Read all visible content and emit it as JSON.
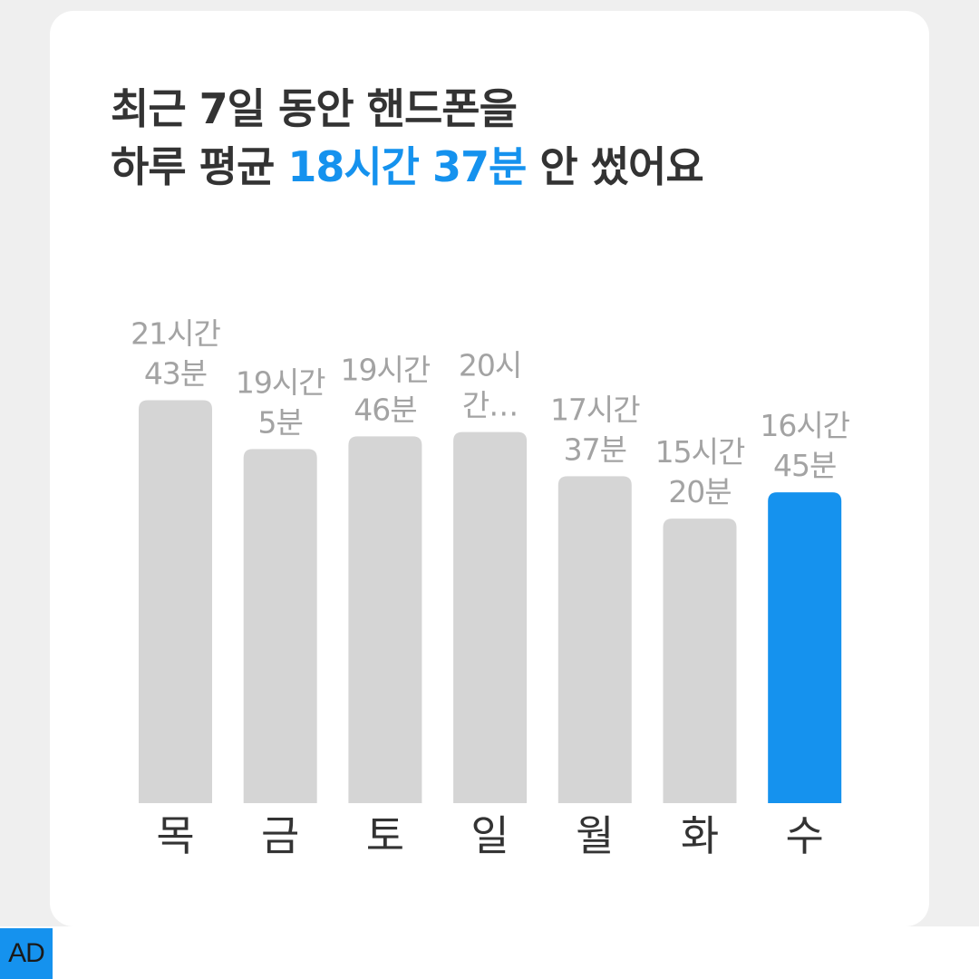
{
  "headline": {
    "line1": "최근 7일 동안 핸드폰을",
    "line2_prefix": "하루 평균 ",
    "line2_highlight": "18시간 37분",
    "line2_suffix": " 안 썼어요"
  },
  "chart_data": {
    "type": "bar",
    "categories": [
      "목",
      "금",
      "토",
      "일",
      "월",
      "화",
      "수"
    ],
    "values": [
      21.717,
      19.083,
      19.767,
      20.0,
      17.617,
      15.333,
      16.75
    ],
    "value_labels": [
      [
        "21시간",
        "43분"
      ],
      [
        "19시간",
        "5분"
      ],
      [
        "19시간",
        "46분"
      ],
      [
        "20시",
        "간…"
      ],
      [
        "17시간",
        "37분"
      ],
      [
        "15시간",
        "20분"
      ],
      [
        "16시간",
        "45분"
      ]
    ],
    "unit": "hours",
    "highlight_index": 6,
    "colors": {
      "default": "#d5d5d5",
      "highlight": "#1592ee"
    }
  },
  "ad": {
    "label": "AD"
  }
}
